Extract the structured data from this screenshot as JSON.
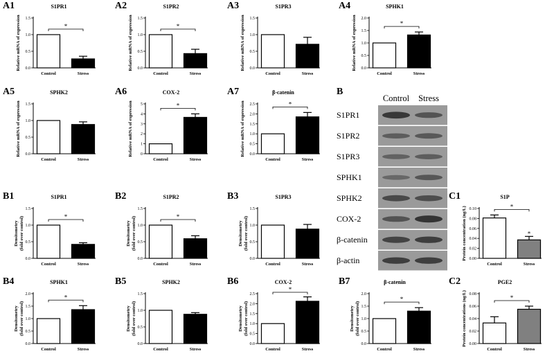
{
  "chart_data": [
    {
      "id": "A1",
      "panel_label": "A1",
      "type": "bar",
      "title": "S1PR1",
      "ylabel": "Relative mRNA of expression",
      "categories": [
        "Control",
        "Stress"
      ],
      "values": [
        1.0,
        0.27
      ],
      "errors": [
        0,
        0.08
      ],
      "colors": [
        "#ffffff",
        "#000000"
      ],
      "ylim": [
        0,
        1.5
      ],
      "yticks": [
        "0.0",
        "0.5",
        "1.0",
        "1.5"
      ],
      "significance": "*"
    },
    {
      "id": "A2",
      "panel_label": "A2",
      "type": "bar",
      "title": "S1PR2",
      "ylabel": "Relative mRNA of expression",
      "categories": [
        "Control",
        "Stress"
      ],
      "values": [
        1.0,
        0.43
      ],
      "errors": [
        0,
        0.13
      ],
      "colors": [
        "#ffffff",
        "#000000"
      ],
      "ylim": [
        0,
        1.5
      ],
      "yticks": [
        "0.0",
        "0.5",
        "1.0",
        "1.5"
      ],
      "significance": "*"
    },
    {
      "id": "A3",
      "panel_label": "A3",
      "type": "bar",
      "title": "S1PR3",
      "ylabel": "Relative mRNA of expression",
      "categories": [
        "Control",
        "Stress"
      ],
      "values": [
        1.0,
        0.71
      ],
      "errors": [
        0,
        0.21
      ],
      "colors": [
        "#ffffff",
        "#000000"
      ],
      "ylim": [
        0,
        1.5
      ],
      "yticks": [
        "0.0",
        "0.5",
        "1.0",
        "1.5"
      ],
      "significance": ""
    },
    {
      "id": "A4",
      "panel_label": "A4",
      "type": "bar",
      "title": "SPHK1",
      "ylabel": "Relative mRNA of expression",
      "categories": [
        "Control",
        "Stress"
      ],
      "values": [
        1.0,
        1.32
      ],
      "errors": [
        0,
        0.12
      ],
      "colors": [
        "#ffffff",
        "#000000"
      ],
      "ylim": [
        0,
        2.0
      ],
      "yticks": [
        "0.0",
        "0.5",
        "1.0",
        "1.5",
        "2.0"
      ],
      "significance": "*"
    },
    {
      "id": "A5",
      "panel_label": "A5",
      "type": "bar",
      "title": "SPHK2",
      "ylabel": "Relative mRNA of expression",
      "categories": [
        "Control",
        "Stress"
      ],
      "values": [
        1.0,
        0.88
      ],
      "errors": [
        0,
        0.08
      ],
      "colors": [
        "#ffffff",
        "#000000"
      ],
      "ylim": [
        0,
        1.5
      ],
      "yticks": [
        "0.0",
        "0.5",
        "1.0",
        "1.5"
      ],
      "significance": ""
    },
    {
      "id": "A6",
      "panel_label": "A6",
      "type": "bar",
      "title": "COX-2",
      "ylabel": "Relative mRNA of expression",
      "categories": [
        "Control",
        "Stress"
      ],
      "values": [
        1.0,
        3.65
      ],
      "errors": [
        0,
        0.35
      ],
      "colors": [
        "#ffffff",
        "#000000"
      ],
      "ylim": [
        0,
        5
      ],
      "yticks": [
        "0",
        "1",
        "2",
        "3",
        "4",
        "5"
      ],
      "significance": "*"
    },
    {
      "id": "A7",
      "panel_label": "A7",
      "type": "bar",
      "title": "β-catenin",
      "ylabel": "Relative mRNA of expression",
      "categories": [
        "Control",
        "Stress"
      ],
      "values": [
        1.0,
        1.85
      ],
      "errors": [
        0,
        0.22
      ],
      "colors": [
        "#ffffff",
        "#000000"
      ],
      "ylim": [
        0,
        2.5
      ],
      "yticks": [
        "0.0",
        "0.5",
        "1.0",
        "1.5",
        "2.0",
        "2.5"
      ],
      "significance": "*"
    },
    {
      "id": "B1",
      "panel_label": "B1",
      "type": "bar",
      "title": "S1PR1",
      "ylabel": "Densitometry (fold over control)",
      "categories": [
        "Control",
        "Stress"
      ],
      "values": [
        1.0,
        0.42
      ],
      "errors": [
        0,
        0.05
      ],
      "colors": [
        "#ffffff",
        "#000000"
      ],
      "ylim": [
        0,
        1.5
      ],
      "yticks": [
        "0.0",
        "0.5",
        "1.0",
        "1.5"
      ],
      "significance": "*"
    },
    {
      "id": "B2",
      "panel_label": "B2",
      "type": "bar",
      "title": "S1PR2",
      "ylabel": "Densitometry (fold over control)",
      "categories": [
        "Control",
        "Stress"
      ],
      "values": [
        1.0,
        0.59
      ],
      "errors": [
        0,
        0.09
      ],
      "colors": [
        "#ffffff",
        "#000000"
      ],
      "ylim": [
        0,
        1.5
      ],
      "yticks": [
        "0.0",
        "0.5",
        "1.0",
        "1.5"
      ],
      "significance": "*"
    },
    {
      "id": "B3",
      "panel_label": "B3",
      "type": "bar",
      "title": "S1PR3",
      "ylabel": "Densitometry (fold over control)",
      "categories": [
        "Control",
        "Stress"
      ],
      "values": [
        1.0,
        0.88
      ],
      "errors": [
        0,
        0.14
      ],
      "colors": [
        "#ffffff",
        "#000000"
      ],
      "ylim": [
        0,
        1.5
      ],
      "yticks": [
        "0.0",
        "0.5",
        "1.0",
        "1.5"
      ],
      "significance": ""
    },
    {
      "id": "B4",
      "panel_label": "B4",
      "type": "bar",
      "title": "SPHK1",
      "ylabel": "Densitometry (fold over control)",
      "categories": [
        "Control",
        "Stress"
      ],
      "values": [
        1.0,
        1.36
      ],
      "errors": [
        0,
        0.16
      ],
      "colors": [
        "#ffffff",
        "#000000"
      ],
      "ylim": [
        0,
        2.0
      ],
      "yticks": [
        "0.0",
        "0.5",
        "1.0",
        "1.5",
        "2.0"
      ],
      "significance": "*"
    },
    {
      "id": "B5",
      "panel_label": "B5",
      "type": "bar",
      "title": "SPHK2",
      "ylabel": "Densitometry (fold over control)",
      "categories": [
        "Control",
        "Stress"
      ],
      "values": [
        1.0,
        0.88
      ],
      "errors": [
        0,
        0.05
      ],
      "colors": [
        "#ffffff",
        "#000000"
      ],
      "ylim": [
        0,
        1.5
      ],
      "yticks": [
        "0.0",
        "0.5",
        "1.0",
        "1.5"
      ],
      "significance": ""
    },
    {
      "id": "B6",
      "panel_label": "B6",
      "type": "bar",
      "title": "COX-2",
      "ylabel": "Densitometry (fold over control)",
      "categories": [
        "Control",
        "Stress"
      ],
      "values": [
        1.0,
        2.12
      ],
      "errors": [
        0,
        0.22
      ],
      "colors": [
        "#ffffff",
        "#000000"
      ],
      "ylim": [
        0,
        2.5
      ],
      "yticks": [
        "0.0",
        "0.5",
        "1.0",
        "1.5",
        "2.0",
        "2.5"
      ],
      "significance": "*"
    },
    {
      "id": "B7",
      "panel_label": "B7",
      "type": "bar",
      "title": "β-catenin",
      "ylabel": "Densitometry (fold over control)",
      "categories": [
        "Control",
        "Stress"
      ],
      "values": [
        1.0,
        1.3
      ],
      "errors": [
        0,
        0.14
      ],
      "colors": [
        "#ffffff",
        "#000000"
      ],
      "ylim": [
        0,
        2.0
      ],
      "yticks": [
        "0.0",
        "0.5",
        "1.0",
        "1.5",
        "2.0"
      ],
      "significance": "*"
    },
    {
      "id": "C1",
      "panel_label": "C1",
      "type": "bar",
      "title": "S1P",
      "ylabel": "Protein concentration (ng/L)",
      "categories": [
        "Control",
        "Stress"
      ],
      "values": [
        0.081,
        0.037
      ],
      "errors": [
        0.006,
        0.007
      ],
      "colors": [
        "#ffffff",
        "#808080"
      ],
      "ylim": [
        0,
        0.1
      ],
      "yticks": [
        "0.00",
        "0.02",
        "0.04",
        "0.06",
        "0.08",
        "0.10"
      ],
      "significance": "*",
      "bar_marker": "*"
    },
    {
      "id": "C2",
      "panel_label": "C2",
      "type": "bar",
      "title": "PGE2",
      "ylabel": "Protein concentrations (ng/L)",
      "categories": [
        "Control",
        "Stress"
      ],
      "values": [
        0.033,
        0.055
      ],
      "errors": [
        0.01,
        0.005
      ],
      "colors": [
        "#ffffff",
        "#808080"
      ],
      "ylim": [
        0,
        0.08
      ],
      "yticks": [
        "0.00",
        "0.02",
        "0.04",
        "0.06",
        "0.08"
      ],
      "significance": "*"
    }
  ],
  "blot": {
    "panel_label": "B",
    "columns": [
      "Control",
      "Stress"
    ],
    "rows": [
      "S1PR1",
      "S1PR2",
      "S1PR3",
      "SPHK1",
      "SPHK2",
      "COX-2",
      "β-catenin",
      "β-actin"
    ],
    "band_intensity": [
      [
        0.9,
        0.65
      ],
      [
        0.55,
        0.6
      ],
      [
        0.5,
        0.55
      ],
      [
        0.45,
        0.62
      ],
      [
        0.75,
        0.7
      ],
      [
        0.65,
        0.95
      ],
      [
        0.8,
        0.85
      ],
      [
        0.85,
        0.85
      ]
    ]
  }
}
